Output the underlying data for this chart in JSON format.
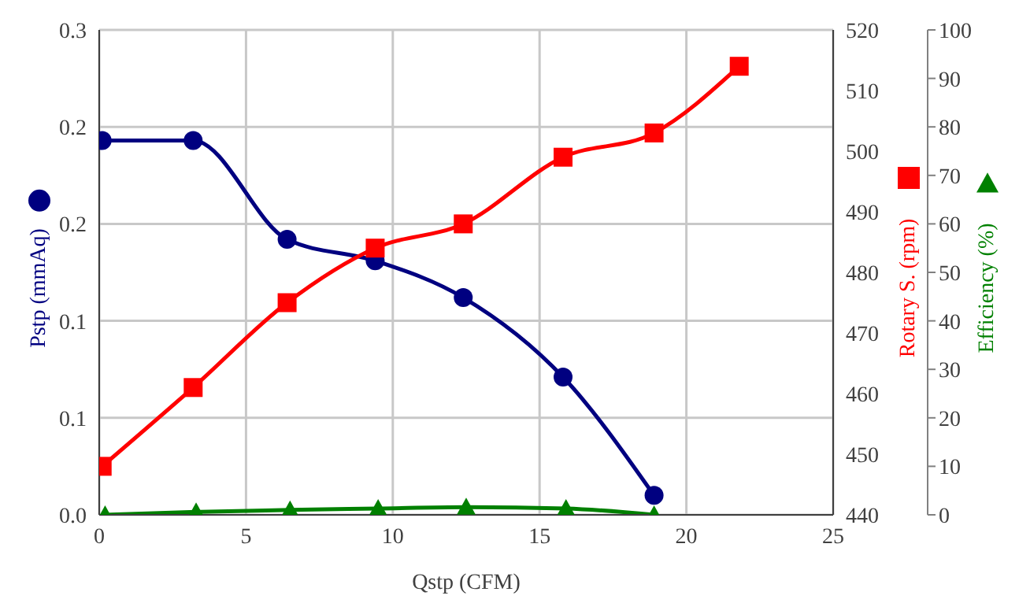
{
  "chart_data": {
    "type": "line",
    "xlabel": "Qstp (CFM)",
    "ylabel": "Pstp (mmAq)",
    "y2label": "Rotary S. (rpm)",
    "y3label": "Efficiency (%)",
    "xlim": [
      0,
      25
    ],
    "xticks": [
      0,
      5,
      10,
      15,
      20,
      25
    ],
    "ylim": [
      0,
      0.25
    ],
    "yticks": [
      {
        "value": 0,
        "label": "0.0"
      },
      {
        "value": 0.05,
        "label": "0.1"
      },
      {
        "value": 0.1,
        "label": "0.1"
      },
      {
        "value": 0.15,
        "label": "0.2"
      },
      {
        "value": 0.2,
        "label": "0.2"
      },
      {
        "value": 0.25,
        "label": "0.3"
      }
    ],
    "y2lim": [
      440,
      520
    ],
    "y2ticks": [
      440,
      450,
      460,
      470,
      480,
      490,
      500,
      510,
      520
    ],
    "y3lim": [
      0,
      100
    ],
    "y3ticks": [
      0,
      10,
      20,
      30,
      40,
      50,
      60,
      70,
      80,
      90,
      100
    ],
    "grid": true,
    "line_style": "solid",
    "series": [
      {
        "color": "#000080",
        "marker": "circle",
        "x": [
          0.1,
          3.2,
          6.4,
          9.4,
          12.4,
          15.8,
          18.9
        ],
        "values": [
          0.193,
          0.193,
          0.142,
          0.131,
          0.112,
          0.071,
          0.01
        ]
      },
      {
        "color": "#ff0000",
        "marker": "square",
        "axis": "y2",
        "x": [
          0.1,
          3.2,
          6.4,
          9.4,
          12.4,
          15.8,
          18.9,
          21.8
        ],
        "values": [
          448,
          461,
          475,
          484,
          488,
          499,
          503,
          514
        ]
      },
      {
        "color": "#008000",
        "marker": "triangle",
        "axis": "y3",
        "x": [
          0.2,
          3.3,
          6.5,
          9.5,
          12.5,
          15.9,
          18.9
        ],
        "values": [
          0,
          0.6,
          1,
          1.3,
          1.6,
          1.3,
          0
        ]
      }
    ]
  }
}
